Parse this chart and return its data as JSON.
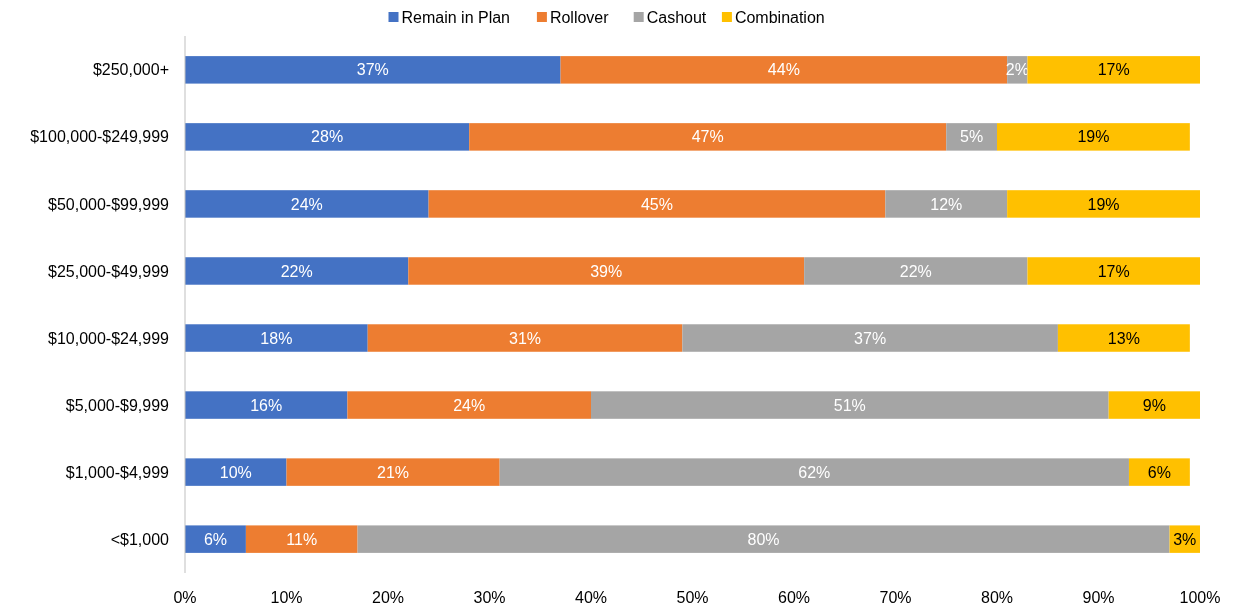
{
  "chart_data": {
    "type": "bar",
    "orientation": "horizontal",
    "stacked": true,
    "categories": [
      "$250,000+",
      "$100,000-$249,999",
      "$50,000-$99,999",
      "$25,000-$49,999",
      "$10,000-$24,999",
      "$5,000-$9,999",
      "$1,000-$4,999",
      "<$1,000"
    ],
    "series": [
      {
        "name": "Remain in Plan",
        "color": "#4472c4",
        "values": [
          37,
          28,
          24,
          22,
          18,
          16,
          10,
          6
        ],
        "value_labels": [
          "37%",
          "28%",
          "24%",
          "22%",
          "18%",
          "16%",
          "10%",
          "6%"
        ]
      },
      {
        "name": "Rollover",
        "color": "#ed7d31",
        "values": [
          44,
          47,
          45,
          39,
          31,
          24,
          21,
          11
        ],
        "value_labels": [
          "44%",
          "47%",
          "45%",
          "39%",
          "31%",
          "24%",
          "21%",
          "11%"
        ]
      },
      {
        "name": "Cashout",
        "color": "#a5a5a5",
        "values": [
          2,
          5,
          12,
          22,
          37,
          51,
          62,
          80
        ],
        "value_labels": [
          "2%",
          "5%",
          "12%",
          "22%",
          "37%",
          "51%",
          "62%",
          "80%"
        ]
      },
      {
        "name": "Combination",
        "color": "#ffc000",
        "values": [
          17,
          19,
          19,
          17,
          13,
          9,
          6,
          3
        ],
        "value_labels": [
          "17%",
          "19%",
          "19%",
          "17%",
          "13%",
          "9%",
          "6%",
          "3%"
        ]
      }
    ],
    "xlim": [
      0,
      100
    ],
    "xticks": [
      {
        "value": 0,
        "label": "0%"
      },
      {
        "value": 10,
        "label": "10%"
      },
      {
        "value": 20,
        "label": "20%"
      },
      {
        "value": 30,
        "label": "30%"
      },
      {
        "value": 40,
        "label": "40%"
      },
      {
        "value": 50,
        "label": "50%"
      },
      {
        "value": 60,
        "label": "60%"
      },
      {
        "value": 70,
        "label": "70%"
      },
      {
        "value": 80,
        "label": "80%"
      },
      {
        "value": 90,
        "label": "90%"
      },
      {
        "value": 100,
        "label": "100%"
      }
    ],
    "legend": "top",
    "grid": false
  }
}
